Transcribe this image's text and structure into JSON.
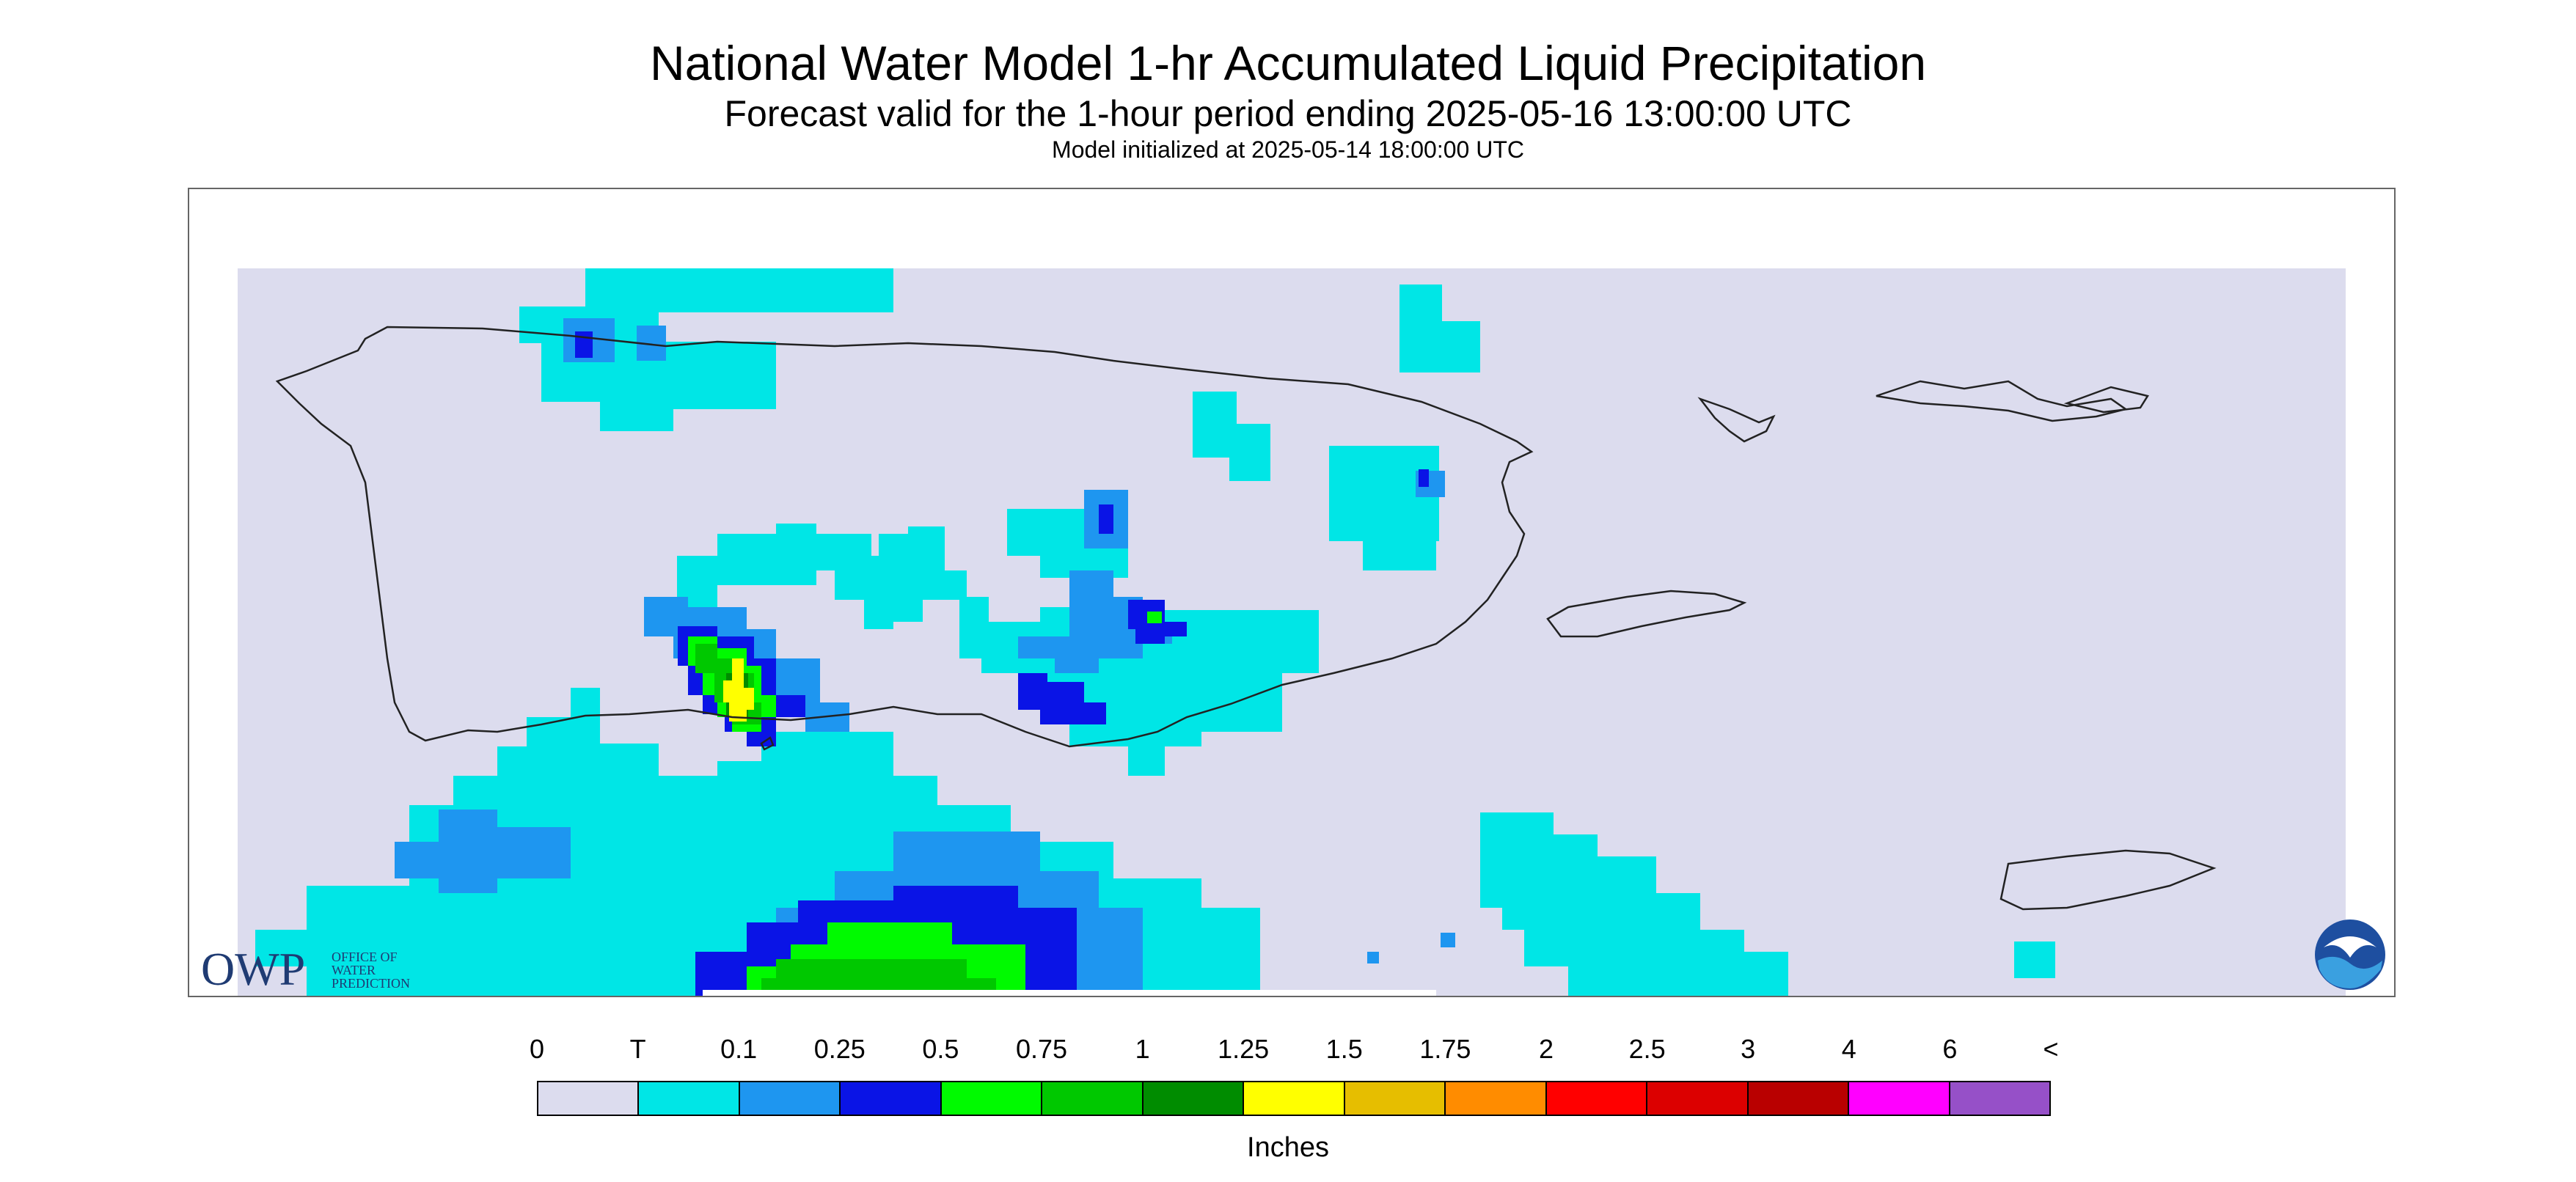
{
  "header": {
    "title": "National Water Model 1-hr Accumulated Liquid Precipitation",
    "subtitle": "Forecast valid for the 1-hour period ending 2025-05-16 13:00:00 UTC",
    "init": "Model initialized at 2025-05-14 18:00:00 UTC"
  },
  "logos": {
    "owp_mark": "OWP",
    "owp_lines": [
      "OFFICE OF",
      "WATER",
      "PREDICTION"
    ],
    "noaa": "NOAA"
  },
  "legend": {
    "labels": [
      "0",
      "T",
      "0.1",
      "0.25",
      "0.5",
      "0.75",
      "1",
      "1.25",
      "1.5",
      "1.75",
      "2",
      "2.5",
      "3",
      "4",
      "6",
      "<"
    ],
    "colors": [
      "#dcdcee",
      "#00e6e6",
      "#1e96f0",
      "#0a14e6",
      "#00fa00",
      "#00c800",
      "#008c00",
      "#ffff00",
      "#e6be00",
      "#ff8c00",
      "#ff0000",
      "#dc0000",
      "#b90000",
      "#ff00ff",
      "#9650c8"
    ],
    "units": "Inches"
  }
}
